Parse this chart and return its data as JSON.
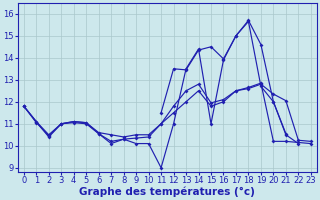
{
  "background_color": "#cde8ec",
  "line_color": "#2020b0",
  "grid_color": "#aac8cc",
  "xlabel": "Graphe des températures (°c)",
  "xlabel_fontsize": 7.5,
  "tick_fontsize": 6,
  "ylim": [
    8.8,
    16.5
  ],
  "xlim": [
    -0.5,
    23.5
  ],
  "yticks": [
    9,
    10,
    11,
    12,
    13,
    14,
    15,
    16
  ],
  "xticks": [
    0,
    1,
    2,
    3,
    4,
    5,
    6,
    7,
    8,
    9,
    10,
    11,
    12,
    13,
    14,
    15,
    16,
    17,
    18,
    19,
    20,
    21,
    22,
    23
  ],
  "curve1": {
    "x": [
      0,
      1,
      2,
      3,
      4,
      5,
      6,
      7,
      8,
      9,
      10,
      11,
      12,
      13,
      14,
      15,
      16,
      17,
      18,
      19,
      20,
      21,
      22
    ],
    "y": [
      11.8,
      11.1,
      10.4,
      11.0,
      11.1,
      11.05,
      10.55,
      10.1,
      10.3,
      10.1,
      10.1,
      9.0,
      11.0,
      13.5,
      14.4,
      11.0,
      13.9,
      15.0,
      15.65,
      12.7,
      12.0,
      10.5,
      10.1
    ]
  },
  "curve2": {
    "x": [
      0,
      1,
      2,
      3,
      4,
      5,
      6,
      7,
      8,
      9,
      10,
      11,
      12,
      13,
      14,
      15,
      16,
      17,
      18,
      19,
      20,
      21,
      22,
      23
    ],
    "y": [
      11.8,
      11.1,
      10.5,
      11.0,
      11.1,
      11.05,
      10.6,
      10.5,
      10.4,
      10.5,
      10.5,
      11.0,
      11.5,
      12.0,
      12.5,
      11.8,
      12.0,
      12.5,
      12.6,
      12.8,
      12.35,
      12.05,
      10.25,
      10.2
    ]
  },
  "curve3": {
    "x": [
      0,
      1,
      2,
      3,
      4,
      5,
      6,
      7,
      8,
      9,
      10,
      11,
      12,
      13,
      14,
      15,
      16,
      17,
      18,
      19,
      20,
      21,
      22,
      23
    ],
    "y": [
      11.8,
      11.05,
      10.45,
      11.0,
      11.05,
      11.0,
      10.55,
      10.2,
      10.3,
      10.35,
      10.4,
      11.0,
      11.8,
      12.5,
      12.8,
      11.95,
      12.1,
      12.5,
      12.65,
      12.85,
      10.2,
      10.2,
      10.15,
      10.1
    ]
  },
  "curve4": {
    "x": [
      11,
      12,
      13,
      14,
      15,
      16,
      17,
      18,
      19,
      20,
      21
    ],
    "y": [
      11.5,
      13.5,
      13.45,
      14.35,
      14.5,
      13.95,
      15.0,
      15.7,
      14.6,
      12.0,
      10.55
    ]
  }
}
